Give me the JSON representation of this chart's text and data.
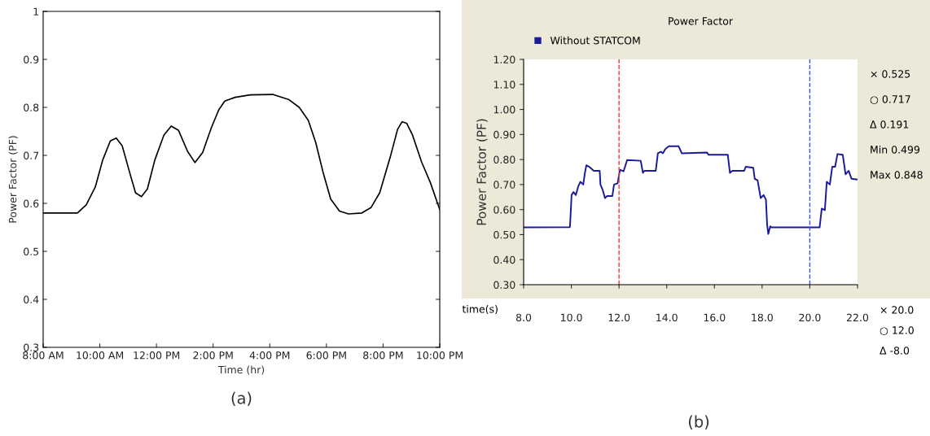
{
  "chart_data": [
    {
      "type": "line",
      "xlabel": "Time (hr)",
      "ylabel": "Power Factor (PF)",
      "annotations": [
        "(a)"
      ],
      "x": [
        8,
        9.21,
        9.52,
        9.84,
        10.1,
        10.37,
        10.58,
        10.79,
        11.05,
        11.26,
        11.47,
        11.68,
        11.94,
        12.26,
        12.52,
        12.78,
        13.1,
        13.36,
        13.63,
        13.94,
        14.2,
        14.41,
        14.78,
        15.31,
        16.1,
        16.68,
        17.04,
        17.36,
        17.62,
        17.88,
        18.15,
        18.46,
        18.78,
        19.25,
        19.57,
        19.88,
        20.25,
        20.51,
        20.67,
        20.83,
        21.04,
        21.36,
        21.67,
        22
      ],
      "series": [
        {
          "color": "#000000",
          "values": [
            0.58,
            0.58,
            0.597,
            0.634,
            0.69,
            0.73,
            0.736,
            0.72,
            0.665,
            0.622,
            0.614,
            0.63,
            0.69,
            0.742,
            0.761,
            0.752,
            0.708,
            0.685,
            0.706,
            0.758,
            0.795,
            0.813,
            0.821,
            0.826,
            0.827,
            0.816,
            0.8,
            0.773,
            0.727,
            0.665,
            0.609,
            0.584,
            0.578,
            0.58,
            0.591,
            0.622,
            0.696,
            0.754,
            0.77,
            0.767,
            0.742,
            0.686,
            0.643,
            0.587
          ]
        }
      ],
      "xlim": [
        8,
        22
      ],
      "xticks": [
        {
          "value": 8,
          "label": "8:00 AM"
        },
        {
          "value": 10,
          "label": "10:00 AM"
        },
        {
          "value": 12,
          "label": "12:00 PM"
        },
        {
          "value": 14,
          "label": "2:00 PM"
        },
        {
          "value": 16,
          "label": "4:00 PM"
        },
        {
          "value": 18,
          "label": "6:00 PM"
        },
        {
          "value": 20,
          "label": "8:00 PM"
        },
        {
          "value": 22,
          "label": "10:00 PM"
        }
      ],
      "ylim": [
        0.3,
        1
      ],
      "yticks": [
        0.3,
        0.4,
        0.5,
        0.6,
        0.7,
        0.8,
        0.9,
        1
      ],
      "grid": false,
      "legend": false
    },
    {
      "type": "line",
      "title": "Power Factor",
      "xlabel": "time(s)",
      "ylabel": "Power Factor (PF)",
      "annotations": [
        "× 0.525",
        "○ 0.717",
        "Δ 0.191",
        "Min 0.499",
        "Max 0.848",
        "× 20.0",
        "○ 12.0",
        "Δ -8.0",
        "(b)"
      ],
      "x": [
        8,
        9.94,
        9.96,
        10.01,
        10.09,
        10.19,
        10.29,
        10.38,
        10.5,
        10.56,
        10.63,
        10.75,
        10.94,
        11.19,
        11.22,
        11.31,
        11.41,
        11.5,
        11.72,
        11.79,
        11.94,
        12.04,
        12.19,
        12.34,
        12.91,
        13.0,
        13.06,
        13.54,
        13.63,
        13.75,
        13.84,
        13.94,
        14.09,
        14.5,
        14.63,
        15.69,
        15.75,
        16.56,
        16.65,
        16.75,
        17.25,
        17.31,
        17.63,
        17.69,
        17.81,
        17.94,
        18.06,
        18.16,
        18.21,
        18.26,
        18.34,
        18.38,
        20.41,
        20.5,
        20.63,
        20.71,
        20.84,
        20.94,
        21.06,
        21.16,
        21.38,
        21.5,
        21.63,
        21.75,
        22.0
      ],
      "series": [
        {
          "name": "Without STATCOM",
          "color": "#1a1a9a",
          "values": [
            0.529,
            0.53,
            0.562,
            0.658,
            0.67,
            0.658,
            0.693,
            0.711,
            0.7,
            0.741,
            0.777,
            0.771,
            0.755,
            0.755,
            0.7,
            0.68,
            0.646,
            0.654,
            0.654,
            0.7,
            0.705,
            0.759,
            0.753,
            0.798,
            0.795,
            0.747,
            0.755,
            0.755,
            0.825,
            0.831,
            0.825,
            0.842,
            0.853,
            0.853,
            0.825,
            0.828,
            0.819,
            0.819,
            0.747,
            0.755,
            0.755,
            0.771,
            0.767,
            0.723,
            0.717,
            0.646,
            0.658,
            0.64,
            0.539,
            0.503,
            0.533,
            0.529,
            0.529,
            0.604,
            0.598,
            0.711,
            0.7,
            0.771,
            0.771,
            0.822,
            0.819,
            0.741,
            0.755,
            0.723,
            0.72
          ]
        }
      ],
      "ref_lines": [
        {
          "axis": "x",
          "value": 12,
          "color": "#ff3333",
          "line_style": "dashed"
        },
        {
          "axis": "x",
          "value": 20,
          "color": "#3355ff",
          "line_style": "dashed"
        }
      ],
      "xlim": [
        8,
        22
      ],
      "xticks": [
        {
          "value": 8,
          "label": "8.0"
        },
        {
          "value": 10,
          "label": "10.0"
        },
        {
          "value": 12,
          "label": "12.0"
        },
        {
          "value": 14,
          "label": "14.0"
        },
        {
          "value": 16,
          "label": "16.0"
        },
        {
          "value": 18,
          "label": "18.0"
        },
        {
          "value": 20,
          "label": "20.0"
        },
        {
          "value": 22,
          "label": "22.0"
        }
      ],
      "ylim": [
        0.3,
        1.2
      ],
      "yticks": [
        {
          "value": 0.3,
          "label": "0.30"
        },
        {
          "value": 0.4,
          "label": "0.40"
        },
        {
          "value": 0.5,
          "label": "0.50"
        },
        {
          "value": 0.6,
          "label": "0.60"
        },
        {
          "value": 0.7,
          "label": "0.70"
        },
        {
          "value": 0.8,
          "label": "0.80"
        },
        {
          "value": 0.9,
          "label": "0.90"
        },
        {
          "value": 1.0,
          "label": "1.00"
        },
        {
          "value": 1.1,
          "label": "1.10"
        },
        {
          "value": 1.2,
          "label": "1.20"
        }
      ],
      "grid": false,
      "legend": "top left"
    }
  ]
}
